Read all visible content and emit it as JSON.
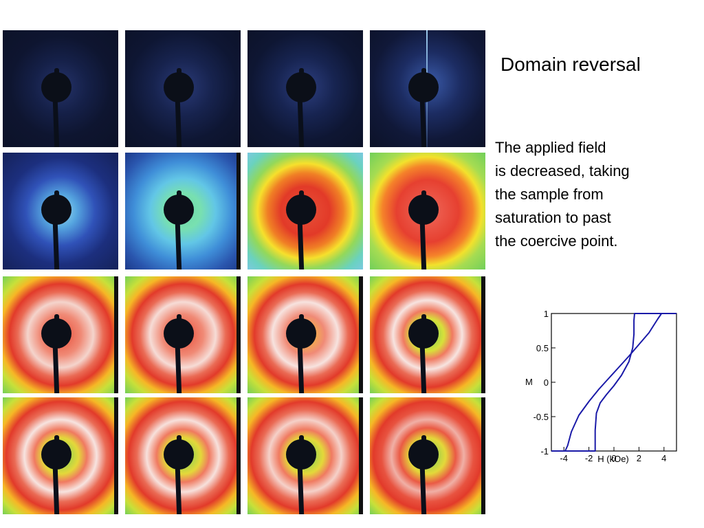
{
  "slide": {
    "title": "Domain reversal",
    "description_lines": [
      "The applied field",
      "is decreased, taking",
      "the sample from",
      "saturation to past",
      "the coercive point."
    ]
  },
  "scattering_images": {
    "rows": 4,
    "columns": 4,
    "count": 16
  },
  "chart_data": {
    "type": "line",
    "title": "",
    "xlabel": "H (kOe)",
    "ylabel": "M",
    "xlim": [
      -5,
      5
    ],
    "ylim": [
      -1,
      1
    ],
    "xticks": [
      -4,
      -2,
      0,
      2,
      4
    ],
    "xtick_labels": [
      "-4",
      "-2",
      "0",
      "2",
      "4"
    ],
    "yticks": [
      1,
      0.5,
      0,
      -0.5,
      -1
    ],
    "ytick_labels": [
      "1",
      "0.5",
      "0",
      "-0.5",
      "-1"
    ],
    "grid": false,
    "line_color": "#1a1aa8",
    "series": [
      {
        "x": [
          5.0,
          3.8,
          3.5,
          2.8,
          2.0,
          1.2,
          0.4,
          -0.4,
          -1.2,
          -2.0,
          -2.8,
          -3.4,
          -3.7,
          -3.9,
          -5.0
        ],
        "y": [
          1.0,
          1.0,
          0.92,
          0.72,
          0.55,
          0.38,
          0.22,
          0.06,
          -0.1,
          -0.28,
          -0.48,
          -0.72,
          -0.92,
          -1.0,
          -1.0
        ]
      },
      {
        "x": [
          -5.0,
          -1.5,
          -1.5,
          -1.4,
          -1.1,
          -0.6,
          0.0,
          0.6,
          1.2,
          1.5,
          1.6,
          1.6,
          1.65,
          5.0
        ],
        "y": [
          -1.0,
          -1.0,
          -0.7,
          -0.45,
          -0.3,
          -0.18,
          -0.05,
          0.1,
          0.3,
          0.5,
          0.7,
          0.9,
          1.0,
          1.0
        ]
      }
    ]
  }
}
